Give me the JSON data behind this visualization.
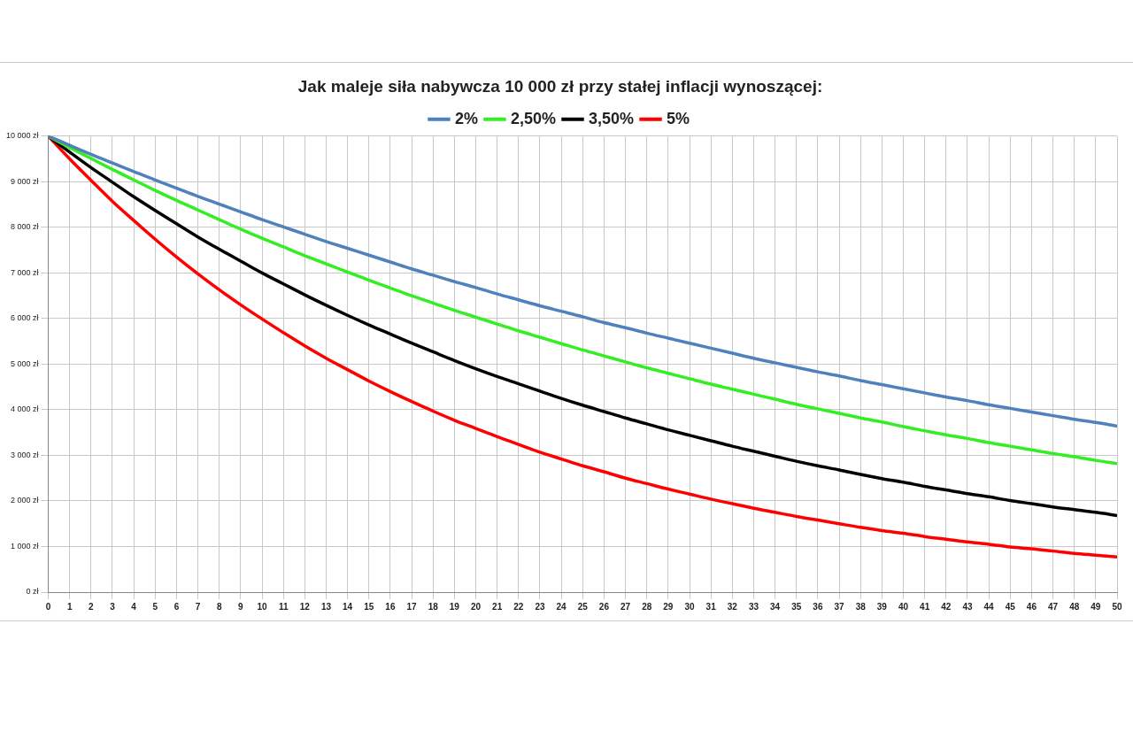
{
  "chart_data": {
    "type": "line",
    "title": "Jak maleje siła nabywcza 10 000 zł przy stałej inflacji wynoszącej:",
    "x": [
      0,
      1,
      2,
      3,
      4,
      5,
      6,
      7,
      8,
      9,
      10,
      11,
      12,
      13,
      14,
      15,
      16,
      17,
      18,
      19,
      20,
      21,
      22,
      23,
      24,
      25,
      26,
      27,
      28,
      29,
      30,
      31,
      32,
      33,
      34,
      35,
      36,
      37,
      38,
      39,
      40,
      41,
      42,
      43,
      44,
      45,
      46,
      47,
      48,
      49,
      50
    ],
    "xlim": [
      0,
      50
    ],
    "xticks": [
      0,
      1,
      2,
      3,
      4,
      5,
      6,
      7,
      8,
      9,
      10,
      11,
      12,
      13,
      14,
      15,
      16,
      17,
      18,
      19,
      20,
      21,
      22,
      23,
      24,
      25,
      26,
      27,
      28,
      29,
      30,
      31,
      32,
      33,
      34,
      35,
      36,
      37,
      38,
      39,
      40,
      41,
      42,
      43,
      44,
      45,
      46,
      47,
      48,
      49,
      50
    ],
    "ylim": [
      0,
      10000
    ],
    "yticks": [
      {
        "value": 0,
        "label": "0 zł"
      },
      {
        "value": 1000,
        "label": "1 000 zł"
      },
      {
        "value": 2000,
        "label": "2 000 zł"
      },
      {
        "value": 3000,
        "label": "3 000 zł"
      },
      {
        "value": 4000,
        "label": "4 000 zł"
      },
      {
        "value": 5000,
        "label": "5 000 zł"
      },
      {
        "value": 6000,
        "label": "6 000 zł"
      },
      {
        "value": 7000,
        "label": "7 000 zł"
      },
      {
        "value": 8000,
        "label": "8 000 zł"
      },
      {
        "value": 9000,
        "label": "9 000 zł"
      },
      {
        "value": 10000,
        "label": "10 000 zł"
      }
    ],
    "grid": true,
    "legend": "top",
    "marker": "none",
    "series": [
      {
        "name": "2%",
        "color": "#4f81bd",
        "values": [
          10000,
          9800,
          9600,
          9410,
          9220,
          9040,
          8860,
          8680,
          8510,
          8340,
          8170,
          8010,
          7850,
          7690,
          7540,
          7390,
          7240,
          7090,
          6950,
          6810,
          6680,
          6540,
          6410,
          6280,
          6160,
          6040,
          5910,
          5800,
          5680,
          5570,
          5460,
          5350,
          5240,
          5130,
          5030,
          4930,
          4830,
          4740,
          4640,
          4550,
          4460,
          4370,
          4280,
          4200,
          4110,
          4030,
          3950,
          3870,
          3790,
          3720,
          3640
        ]
      },
      {
        "name": "2,50%",
        "color": "#33ee22",
        "values": [
          10000,
          9750,
          9510,
          9270,
          9040,
          8810,
          8590,
          8380,
          8170,
          7960,
          7760,
          7570,
          7380,
          7200,
          7020,
          6840,
          6670,
          6500,
          6340,
          6180,
          6030,
          5880,
          5730,
          5590,
          5450,
          5310,
          5180,
          5050,
          4920,
          4800,
          4680,
          4560,
          4450,
          4340,
          4230,
          4120,
          4020,
          3920,
          3820,
          3730,
          3630,
          3540,
          3450,
          3370,
          3280,
          3200,
          3120,
          3040,
          2970,
          2890,
          2820
        ]
      },
      {
        "name": "3,50%",
        "color": "#000000",
        "values": [
          10000,
          9650,
          9310,
          8990,
          8670,
          8370,
          8080,
          7790,
          7520,
          7260,
          7000,
          6760,
          6520,
          6290,
          6070,
          5860,
          5660,
          5460,
          5270,
          5080,
          4900,
          4730,
          4570,
          4410,
          4250,
          4100,
          3960,
          3820,
          3690,
          3560,
          3440,
          3320,
          3200,
          3090,
          2980,
          2870,
          2770,
          2680,
          2580,
          2490,
          2410,
          2320,
          2240,
          2160,
          2090,
          2010,
          1940,
          1870,
          1810,
          1750,
          1680
        ]
      },
      {
        "name": "5%",
        "color": "#ff0000",
        "values": [
          10000,
          9500,
          9030,
          8570,
          8150,
          7740,
          7350,
          6980,
          6630,
          6300,
          5990,
          5690,
          5400,
          5130,
          4880,
          4630,
          4400,
          4180,
          3970,
          3770,
          3590,
          3410,
          3240,
          3070,
          2920,
          2770,
          2640,
          2500,
          2380,
          2260,
          2150,
          2040,
          1940,
          1840,
          1750,
          1660,
          1580,
          1500,
          1420,
          1350,
          1290,
          1220,
          1160,
          1100,
          1050,
          990,
          950,
          900,
          850,
          810,
          770
        ]
      }
    ]
  }
}
